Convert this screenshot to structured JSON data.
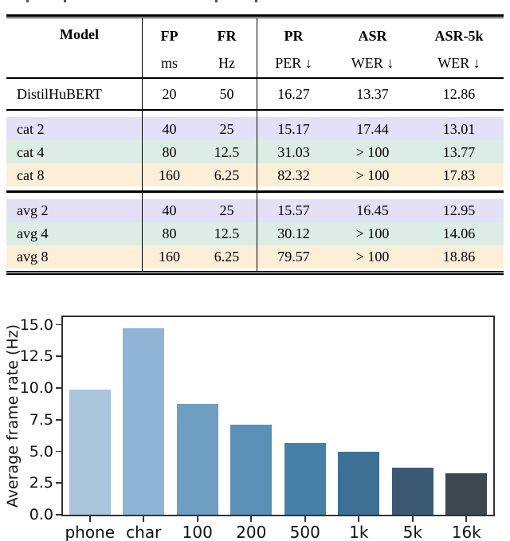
{
  "table": {
    "columns": [
      {
        "key": "model",
        "label": "Model",
        "sub": "",
        "align": "left"
      },
      {
        "key": "fp",
        "label": "FP",
        "sub": "ms",
        "align": "center"
      },
      {
        "key": "fr",
        "label": "FR",
        "sub": "Hz",
        "align": "center"
      },
      {
        "key": "pr",
        "label": "PR",
        "sub": "PER ↓",
        "align": "center"
      },
      {
        "key": "asr",
        "label": "ASR",
        "sub": "WER ↓",
        "align": "center"
      },
      {
        "key": "asr5k",
        "label": "ASR-5k",
        "sub": "WER ↓",
        "align": "center"
      }
    ],
    "groups": [
      {
        "rows": [
          {
            "model": "DistilHuBERT",
            "fp": "20",
            "fr": "50",
            "pr": "16.27",
            "asr": "13.37",
            "asr5k": "12.86",
            "bg": "#ffffff"
          }
        ]
      },
      {
        "rows": [
          {
            "model": "cat 2",
            "fp": "40",
            "fr": "25",
            "pr": "15.17",
            "asr": "17.44",
            "asr5k": "13.01",
            "bg": "#e3e1f8"
          },
          {
            "model": "cat 4",
            "fp": "80",
            "fr": "12.5",
            "pr": "31.03",
            "asr": "> 100",
            "asr5k": "13.77",
            "bg": "#dcede5"
          },
          {
            "model": "cat 8",
            "fp": "160",
            "fr": "6.25",
            "pr": "82.32",
            "asr": "> 100",
            "asr5k": "17.83",
            "bg": "#fdeed8"
          }
        ]
      },
      {
        "rows": [
          {
            "model": "avg 2",
            "fp": "40",
            "fr": "25",
            "pr": "15.57",
            "asr": "16.45",
            "asr5k": "12.95",
            "bg": "#e3e1f8"
          },
          {
            "model": "avg 4",
            "fp": "80",
            "fr": "12.5",
            "pr": "30.12",
            "asr": "> 100",
            "asr5k": "14.06",
            "bg": "#dcede5"
          },
          {
            "model": "avg 8",
            "fp": "160",
            "fr": "6.25",
            "pr": "79.57",
            "asr": "> 100",
            "asr5k": "18.86",
            "bg": "#fdeed8"
          }
        ]
      }
    ]
  },
  "chart_data": {
    "type": "bar",
    "title": "",
    "xlabel": "",
    "ylabel": "Average frame rate (Hz)",
    "categories": [
      "phone",
      "char",
      "100",
      "200",
      "500",
      "1k",
      "5k",
      "16k"
    ],
    "values": [
      9.9,
      14.7,
      8.75,
      7.1,
      5.65,
      4.95,
      3.7,
      3.25
    ],
    "bar_colors": [
      "#a9c4db",
      "#90b4d4",
      "#6f9ec3",
      "#5a90b8",
      "#4480a8",
      "#3e7094",
      "#3a5a74",
      "#3d474f"
    ],
    "ytick_labels": [
      "0.0",
      "2.5",
      "5.0",
      "7.5",
      "10.0",
      "12.5",
      "15.0"
    ],
    "yticks": [
      0,
      2.5,
      5,
      7.5,
      10,
      12.5,
      15
    ],
    "ylim": [
      0,
      15.6
    ],
    "grid": false,
    "legend": null
  }
}
